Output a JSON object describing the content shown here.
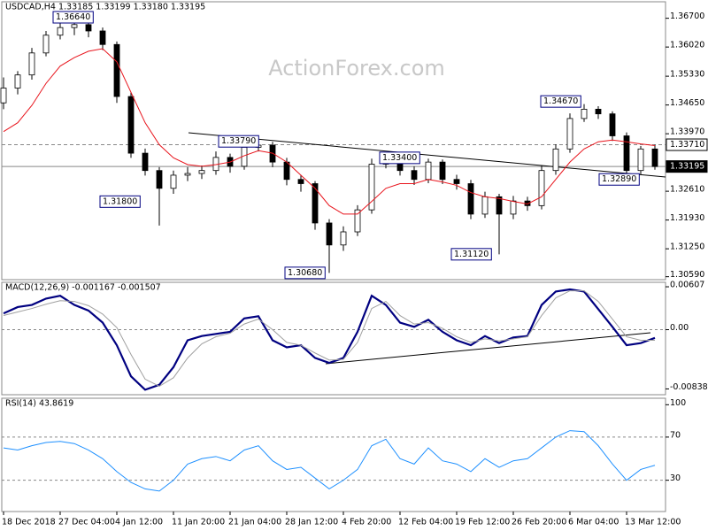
{
  "chart_data": [
    {
      "type": "candlestick",
      "title": "USDCAD,H4  1.33185 1.33199 1.33180 1.33195",
      "watermark": "ActionForex.com",
      "categories": [
        "18 Dec 2018",
        null,
        null,
        null,
        "27 Dec 04:00",
        null,
        null,
        null,
        "4 Jan 12:00",
        null,
        null,
        null,
        "11 Jan 20:00",
        null,
        null,
        null,
        "21 Jan 04:00",
        null,
        null,
        null,
        "28 Jan 12:00",
        null,
        null,
        null,
        "4 Feb 20:00",
        null,
        null,
        null,
        "12 Feb 04:00",
        null,
        null,
        null,
        "19 Feb 12:00",
        null,
        null,
        null,
        "26 Feb 20:00",
        null,
        null,
        null,
        "6 Mar 04:00",
        null,
        null,
        null,
        "13 Mar 12:00",
        null,
        null
      ],
      "open": [
        1.347,
        1.3505,
        1.3536,
        1.3588,
        1.363,
        1.3648,
        1.3655,
        1.364,
        1.3608,
        1.3485,
        1.3351,
        1.331,
        1.3268,
        1.3299,
        1.3303,
        1.331,
        1.3341,
        1.332,
        1.3365,
        1.337,
        1.333,
        1.3289,
        1.3279,
        1.3186,
        1.3134,
        1.3165,
        1.3217,
        1.3325,
        1.333,
        1.331,
        1.3289,
        1.333,
        1.3289,
        1.3279,
        1.3207,
        1.3248,
        1.3207,
        1.3238,
        1.3227,
        1.331,
        1.3361,
        1.3433,
        1.3455,
        1.3444,
        1.3392,
        1.331,
        1.3361
      ],
      "high": [
        1.353,
        1.3545,
        1.36,
        1.364,
        1.366,
        1.3664,
        1.3662,
        1.3648,
        1.3615,
        1.3495,
        1.3362,
        1.3318,
        1.331,
        1.3318,
        1.3322,
        1.3355,
        1.335,
        1.3379,
        1.3379,
        1.3378,
        1.334,
        1.33,
        1.3285,
        1.3195,
        1.3178,
        1.3228,
        1.3338,
        1.334,
        1.3336,
        1.332,
        1.3338,
        1.3336,
        1.33,
        1.3288,
        1.326,
        1.3255,
        1.325,
        1.3248,
        1.3322,
        1.3372,
        1.3445,
        1.3467,
        1.3462,
        1.345,
        1.34,
        1.3368,
        1.3371
      ],
      "low": [
        1.3455,
        1.349,
        1.3525,
        1.358,
        1.362,
        1.363,
        1.3625,
        1.3595,
        1.347,
        1.334,
        1.3298,
        1.318,
        1.3255,
        1.3285,
        1.329,
        1.33,
        1.3305,
        1.3312,
        1.3355,
        1.3318,
        1.3275,
        1.326,
        1.317,
        1.3068,
        1.312,
        1.3155,
        1.3208,
        1.3315,
        1.3298,
        1.3276,
        1.328,
        1.3278,
        1.3265,
        1.3195,
        1.3198,
        1.3112,
        1.3195,
        1.3215,
        1.3218,
        1.33,
        1.3352,
        1.3425,
        1.3432,
        1.338,
        1.3289,
        1.33,
        1.3312
      ],
      "close": [
        1.3505,
        1.3536,
        1.3588,
        1.363,
        1.3648,
        1.3655,
        1.364,
        1.3608,
        1.3485,
        1.3351,
        1.331,
        1.3268,
        1.3299,
        1.3303,
        1.331,
        1.3341,
        1.332,
        1.3365,
        1.337,
        1.333,
        1.3289,
        1.3279,
        1.3186,
        1.3134,
        1.3165,
        1.3217,
        1.3325,
        1.333,
        1.331,
        1.3289,
        1.333,
        1.3289,
        1.3279,
        1.3207,
        1.3248,
        1.3207,
        1.3238,
        1.3227,
        1.331,
        1.3361,
        1.3433,
        1.3455,
        1.3444,
        1.3392,
        1.331,
        1.3361,
        1.33195
      ],
      "up_color": "#ffffff",
      "down_color": "#000000",
      "line_color": "#000000",
      "overlay": {
        "color": "#e8141c",
        "values": [
          1.3402,
          1.3423,
          1.3464,
          1.3516,
          1.3557,
          1.3577,
          1.3592,
          1.3598,
          1.3567,
          1.3495,
          1.3423,
          1.3371,
          1.334,
          1.3324,
          1.332,
          1.3324,
          1.333,
          1.3345,
          1.3357,
          1.3351,
          1.333,
          1.3299,
          1.3268,
          1.3227,
          1.3207,
          1.3207,
          1.3237,
          1.3268,
          1.3279,
          1.3279,
          1.3289,
          1.3283,
          1.3275,
          1.3258,
          1.3248,
          1.3244,
          1.3237,
          1.3231,
          1.3248,
          1.3289,
          1.333,
          1.3361,
          1.3378,
          1.3382,
          1.3378,
          1.3373,
          1.3369
        ]
      },
      "ylim": [
        1.3052,
        1.3709
      ],
      "yticks": [
        {
          "value": 1.367,
          "label": "1.36700"
        },
        {
          "value": 1.3602,
          "label": "1.36020"
        },
        {
          "value": 1.3533,
          "label": "1.35330"
        },
        {
          "value": 1.3465,
          "label": "1.34650"
        },
        {
          "value": 1.3397,
          "label": "1.33970"
        },
        {
          "value": 1.3261,
          "label": "1.32610"
        },
        {
          "value": 1.3193,
          "label": "1.31930"
        },
        {
          "value": 1.3125,
          "label": "1.31250"
        },
        {
          "value": 1.3059,
          "label": "1.30590"
        }
      ],
      "price_lines": [
        {
          "value": 1.3371,
          "label": "1.33710",
          "style": "dashed"
        },
        {
          "value": 1.33195,
          "label": "1.33195",
          "style": "solid"
        }
      ],
      "annotations": [
        {
          "value": 1.3664,
          "label": "1.36640"
        },
        {
          "value": 1.3379,
          "label": "1.33790"
        },
        {
          "value": 1.334,
          "label": "1.33400"
        },
        {
          "value": 1.3467,
          "label": "1.34670"
        },
        {
          "value": 1.3289,
          "label": "1.32890"
        },
        {
          "value": 1.318,
          "label": "1.31800"
        },
        {
          "value": 1.3068,
          "label": "1.30680"
        },
        {
          "value": 1.3112,
          "label": "1.31120"
        }
      ]
    },
    {
      "type": "line",
      "title": "MACD(12,26,9) -0.001167 -0.001507",
      "series": [
        {
          "color": "#000080",
          "width": 2.2,
          "values": [
            0.0023,
            0.0032,
            0.0035,
            0.0044,
            0.0048,
            0.0035,
            0.0027,
            0.001,
            -0.0022,
            -0.0066,
            -0.0085,
            -0.0078,
            -0.0053,
            -0.0015,
            -0.0009,
            -0.0006,
            -0.0003,
            0.0016,
            0.0019,
            -0.0015,
            -0.0025,
            -0.0022,
            -0.004,
            -0.0047,
            -0.004,
            -0.0003,
            0.0048,
            0.0035,
            0.001,
            0.0004,
            0.0014,
            -0.0003,
            -0.0015,
            -0.0022,
            -0.0009,
            -0.0019,
            -0.0011,
            -0.0009,
            0.0035,
            0.0054,
            0.0057,
            0.0054,
            0.0029,
            0.0004,
            -0.0022,
            -0.0019,
            -0.001167
          ]
        },
        {
          "color": "#a0a0a0",
          "width": 1,
          "values": [
            0.002,
            0.0025,
            0.003,
            0.0036,
            0.0041,
            0.004,
            0.0034,
            0.0022,
            0.0003,
            -0.0035,
            -0.007,
            -0.008,
            -0.0068,
            -0.004,
            -0.002,
            -0.001,
            -0.0005,
            0.0008,
            0.0015,
            0.0,
            -0.0018,
            -0.0022,
            -0.0033,
            -0.0043,
            -0.0042,
            -0.0018,
            0.003,
            0.004,
            0.002,
            0.0008,
            0.001,
            0.0002,
            -0.001,
            -0.0018,
            -0.0013,
            -0.0016,
            -0.0013,
            -0.001,
            0.002,
            0.0045,
            0.0055,
            0.0055,
            0.004,
            0.0015,
            -0.001,
            -0.0015,
            -0.001507
          ]
        }
      ],
      "ylim": [
        -0.0092,
        0.0067
      ],
      "yticks": [
        0.00607,
        {
          "value": 0,
          "label": "0.00"
        },
        -0.008381
      ],
      "levels": [
        0
      ]
    },
    {
      "type": "line",
      "title": "RSI(14) 43.8619",
      "series": [
        {
          "color": "#1e90ff",
          "width": 1,
          "values": [
            60,
            58,
            62,
            65,
            66,
            64,
            58,
            50,
            38,
            28,
            22,
            20,
            30,
            45,
            50,
            52,
            48,
            58,
            62,
            48,
            40,
            42,
            32,
            22,
            30,
            40,
            62,
            68,
            50,
            45,
            60,
            48,
            45,
            38,
            50,
            42,
            48,
            50,
            60,
            70,
            76,
            75,
            62,
            45,
            30,
            40,
            43.8619
          ]
        }
      ],
      "ylim": [
        1,
        106
      ],
      "yticks": [
        100,
        70,
        30
      ],
      "levels": [
        70,
        30
      ]
    }
  ]
}
